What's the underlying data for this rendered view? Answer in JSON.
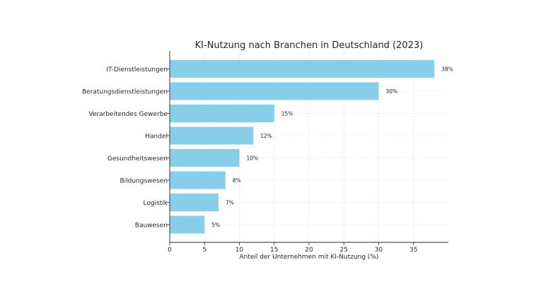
{
  "chart_data": {
    "type": "bar",
    "orientation": "horizontal",
    "title": "KI-Nutzung nach Branchen in Deutschland (2023)",
    "xlabel": "Anteil der Unternehmen mit KI-Nutzung (%)",
    "ylabel": "",
    "xlim": [
      0,
      40
    ],
    "xticks": [
      0,
      5,
      10,
      15,
      20,
      25,
      30,
      35
    ],
    "grid": true,
    "bar_color": "#87ceeb",
    "categories": [
      "IT-Dienstleistungen",
      "Beratungsdienstleistungen",
      "Verarbeitendes Gewerbe",
      "Handel",
      "Gesundheitswesen",
      "Bildungswesen",
      "Logistik",
      "Bauwesen"
    ],
    "values": [
      38,
      30,
      15,
      12,
      10,
      8,
      7,
      5
    ],
    "data_labels": [
      "38%",
      "30%",
      "15%",
      "12%",
      "10%",
      "8%",
      "7%",
      "5%"
    ]
  }
}
